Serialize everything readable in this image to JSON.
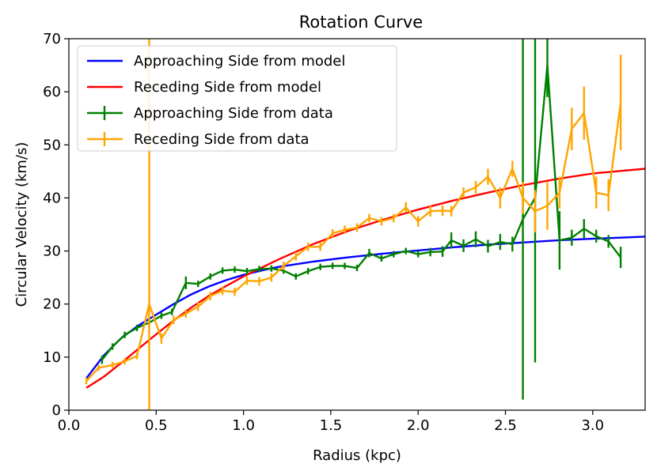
{
  "chart_data": {
    "type": "line",
    "title": "Rotation Curve",
    "xlabel": "Radius (kpc)",
    "ylabel": "Circular Velocity (km/s)",
    "xlim": [
      0.0,
      3.3
    ],
    "ylim": [
      0,
      70
    ],
    "xticks": [
      0.0,
      0.5,
      1.0,
      1.5,
      2.0,
      2.5,
      3.0
    ],
    "xtick_labels": [
      "0.0",
      "0.5",
      "1.0",
      "1.5",
      "2.0",
      "2.5",
      "3.0"
    ],
    "yticks": [
      0,
      10,
      20,
      30,
      40,
      50,
      60,
      70
    ],
    "ytick_labels": [
      "0",
      "10",
      "20",
      "30",
      "40",
      "50",
      "60",
      "70"
    ],
    "grid": false,
    "legend_position": "top-left",
    "series": [
      {
        "name": "Approaching Side from model",
        "kind": "line",
        "color": "#0000ff",
        "x": [
          0.1,
          0.2,
          0.3,
          0.4,
          0.5,
          0.6,
          0.7,
          0.8,
          0.9,
          1.0,
          1.1,
          1.2,
          1.4,
          1.6,
          1.8,
          2.0,
          2.2,
          2.4,
          2.6,
          2.8,
          3.0,
          3.3
        ],
        "y": [
          6.0,
          10.3,
          13.6,
          16.0,
          18.0,
          20.0,
          21.8,
          23.3,
          24.5,
          25.5,
          26.3,
          27.0,
          28.0,
          28.8,
          29.5,
          30.1,
          30.7,
          31.2,
          31.6,
          32.0,
          32.3,
          32.7
        ]
      },
      {
        "name": "Receding Side from model",
        "kind": "line",
        "color": "#ff0000",
        "x": [
          0.1,
          0.2,
          0.3,
          0.4,
          0.5,
          0.6,
          0.7,
          0.8,
          0.9,
          1.0,
          1.2,
          1.4,
          1.6,
          1.8,
          2.0,
          2.2,
          2.4,
          2.6,
          2.8,
          3.0,
          3.3
        ],
        "y": [
          4.2,
          6.3,
          8.9,
          11.6,
          14.3,
          16.9,
          19.3,
          21.5,
          23.4,
          25.2,
          28.4,
          31.3,
          33.8,
          35.9,
          37.8,
          39.5,
          41.0,
          42.4,
          43.6,
          44.6,
          45.5
        ]
      },
      {
        "name": "Approaching Side from data",
        "kind": "errorbar",
        "color": "#008000",
        "x": [
          0.19,
          0.25,
          0.32,
          0.39,
          0.46,
          0.53,
          0.59,
          0.67,
          0.74,
          0.81,
          0.88,
          0.95,
          1.02,
          1.09,
          1.16,
          1.23,
          1.3,
          1.37,
          1.44,
          1.51,
          1.58,
          1.65,
          1.72,
          1.79,
          1.86,
          1.93,
          2.0,
          2.07,
          2.14,
          2.19,
          2.26,
          2.33,
          2.4,
          2.47,
          2.54,
          2.6,
          2.67,
          2.74,
          2.81,
          2.88,
          2.95,
          3.02,
          3.09,
          3.16
        ],
        "y": [
          9.5,
          12.0,
          14.2,
          15.5,
          16.5,
          17.8,
          18.5,
          24.0,
          23.8,
          25.2,
          26.3,
          26.5,
          26.2,
          26.6,
          26.7,
          26.3,
          25.2,
          26.2,
          27.0,
          27.2,
          27.2,
          26.8,
          29.6,
          28.6,
          29.4,
          30.0,
          29.4,
          29.8,
          29.9,
          32.0,
          31.0,
          32.2,
          30.9,
          31.7,
          31.3,
          36.0,
          40.0,
          65.0,
          32.0,
          32.5,
          34.2,
          32.8,
          31.8,
          28.8
        ],
        "yerr": [
          0.8,
          0.6,
          0.6,
          0.6,
          0.6,
          0.6,
          0.6,
          1.2,
          0.6,
          0.6,
          0.6,
          0.6,
          0.6,
          0.6,
          0.6,
          0.6,
          0.6,
          0.6,
          0.6,
          0.6,
          0.6,
          0.6,
          0.8,
          0.6,
          0.6,
          0.6,
          0.6,
          0.8,
          1.0,
          1.5,
          1.2,
          1.5,
          1.2,
          1.5,
          1.4,
          34.0,
          31.0,
          6.0,
          5.5,
          1.5,
          1.8,
          1.2,
          1.2,
          2.0
        ]
      },
      {
        "name": "Receding Side from data",
        "kind": "errorbar",
        "color": "#ffa500",
        "x": [
          0.1,
          0.17,
          0.25,
          0.32,
          0.39,
          0.46,
          0.53,
          0.6,
          0.67,
          0.74,
          0.81,
          0.88,
          0.95,
          1.02,
          1.09,
          1.16,
          1.23,
          1.3,
          1.37,
          1.44,
          1.51,
          1.58,
          1.65,
          1.72,
          1.79,
          1.86,
          1.93,
          2.0,
          2.07,
          2.14,
          2.19,
          2.26,
          2.33,
          2.4,
          2.47,
          2.54,
          2.6,
          2.67,
          2.74,
          2.81,
          2.88,
          2.95,
          3.02,
          3.09,
          3.16
        ],
        "y": [
          5.5,
          8.0,
          8.5,
          9.2,
          10.2,
          20.0,
          13.5,
          17.0,
          18.2,
          19.5,
          21.5,
          22.5,
          22.3,
          24.4,
          24.3,
          25.0,
          27.2,
          29.0,
          30.8,
          30.8,
          33.3,
          34.0,
          34.4,
          36.2,
          35.6,
          36.2,
          38.2,
          35.6,
          37.5,
          37.6,
          37.5,
          41.0,
          42.0,
          44.0,
          40.0,
          45.5,
          40.0,
          37.5,
          38.5,
          41.0,
          53.0,
          56.0,
          41.0,
          40.5,
          58.0
        ],
        "yerr": [
          0.6,
          0.6,
          0.6,
          0.6,
          0.6,
          90.0,
          1.0,
          0.8,
          0.8,
          0.8,
          0.8,
          0.8,
          0.8,
          0.8,
          0.8,
          0.8,
          0.8,
          0.8,
          0.8,
          0.8,
          0.8,
          0.8,
          0.8,
          0.8,
          0.8,
          0.8,
          1.0,
          1.0,
          1.0,
          1.0,
          1.0,
          1.0,
          1.2,
          1.5,
          2.0,
          1.5,
          3.0,
          4.0,
          4.5,
          3.0,
          4.0,
          5.0,
          3.0,
          3.0,
          9.0
        ]
      }
    ]
  }
}
